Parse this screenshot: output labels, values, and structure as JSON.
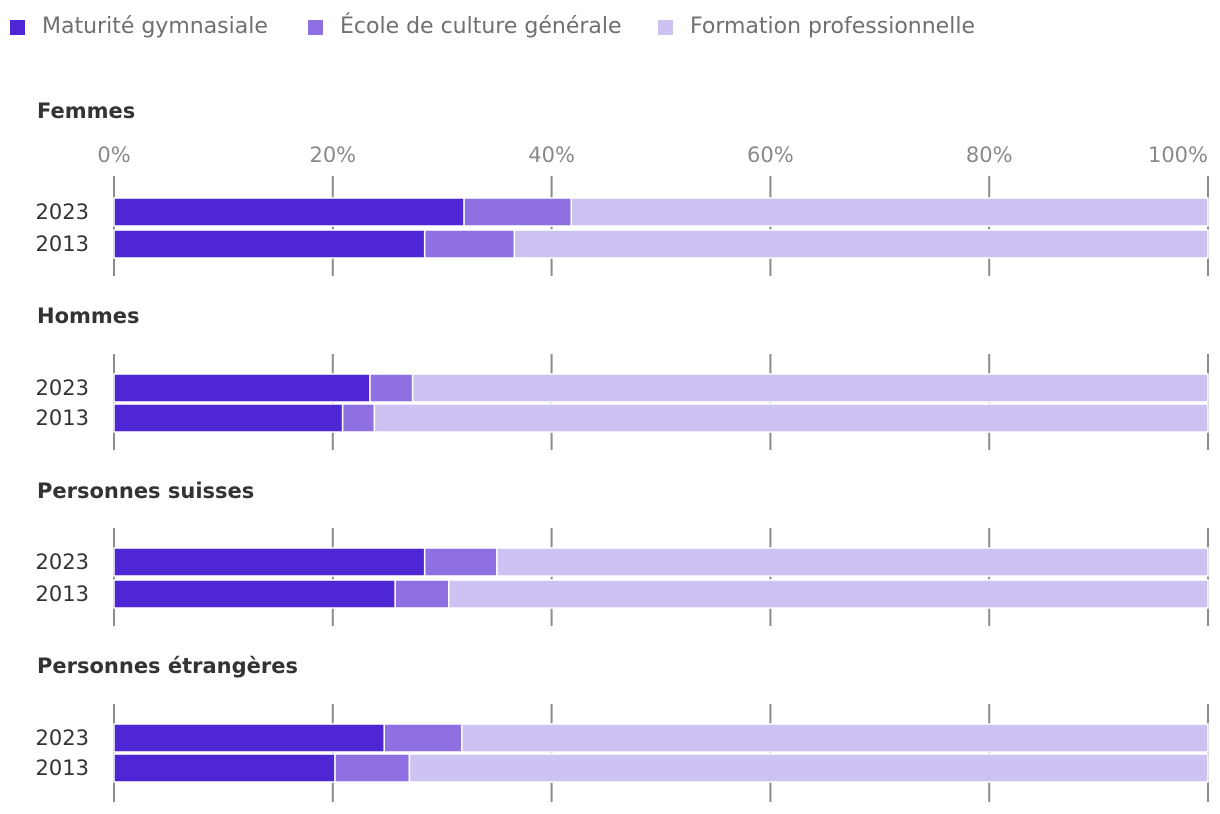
{
  "chart_data": {
    "type": "bar",
    "orientation": "horizontal-stacked",
    "xlim": [
      0,
      100
    ],
    "ticks": [
      0,
      20,
      40,
      60,
      80,
      100
    ],
    "tick_labels": [
      "0%",
      "20%",
      "40%",
      "60%",
      "80%",
      "100%"
    ],
    "series": [
      {
        "name": "Maturité gymnasiale",
        "color": "#4f26d3"
      },
      {
        "name": "École de culture générale",
        "color": "#8e70e2"
      },
      {
        "name": "Formation professionnelle",
        "color": "#cdc2f2"
      }
    ],
    "groups": [
      {
        "title": "Femmes",
        "rows": [
          {
            "label": "2023",
            "values": [
              32,
              9.8,
              58.2
            ]
          },
          {
            "label": "2013",
            "values": [
              28.4,
              8.2,
              63.4
            ]
          }
        ]
      },
      {
        "title": "Hommes",
        "rows": [
          {
            "label": "2023",
            "values": [
              23.4,
              3.9,
              72.7
            ]
          },
          {
            "label": "2013",
            "values": [
              20.9,
              2.9,
              76.2
            ]
          }
        ]
      },
      {
        "title": "Personnes suisses",
        "rows": [
          {
            "label": "2023",
            "values": [
              28.4,
              6.6,
              65
            ]
          },
          {
            "label": "2013",
            "values": [
              25.7,
              4.9,
              69.4
            ]
          }
        ]
      },
      {
        "title": "Personnes étrangères",
        "rows": [
          {
            "label": "2023",
            "values": [
              24.7,
              7.1,
              68.2
            ]
          },
          {
            "label": "2013",
            "values": [
              20.2,
              6.8,
              73
            ]
          }
        ]
      }
    ]
  }
}
